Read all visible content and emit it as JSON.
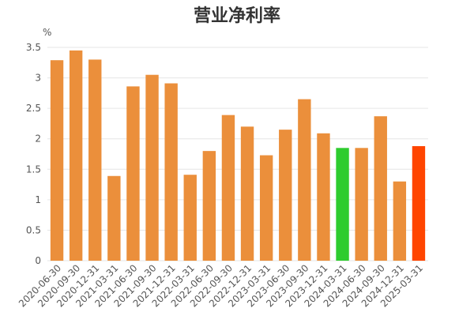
{
  "chart_data": {
    "type": "bar",
    "title": "营业净利率",
    "ylabel": "%",
    "xlabel": "",
    "ylim": [
      0,
      3.5
    ],
    "yticks": [
      "0",
      "0.5",
      "1",
      "1.5",
      "2",
      "2.5",
      "3",
      "3.5"
    ],
    "grid": true,
    "categories": [
      "2020-06-30",
      "2020-09-30",
      "2020-12-31",
      "2021-03-31",
      "2021-06-30",
      "2021-09-30",
      "2021-12-31",
      "2022-03-31",
      "2022-06-30",
      "2022-09-30",
      "2022-12-31",
      "2023-03-31",
      "2023-06-30",
      "2023-09-30",
      "2023-12-31",
      "2024-03-31",
      "2024-06-30",
      "2024-09-30",
      "2024-12-31",
      "2025-03-31"
    ],
    "values": [
      3.29,
      3.45,
      3.3,
      1.39,
      2.86,
      3.05,
      2.91,
      1.41,
      1.8,
      2.39,
      2.2,
      1.73,
      2.15,
      2.65,
      2.09,
      1.85,
      1.85,
      2.37,
      1.3,
      1.88
    ],
    "colors": {
      "default": "#eb8f3b",
      "highlight_green": "#2ecc2e",
      "highlight_red": "#ff4500"
    },
    "bar_color_keys": [
      "default",
      "default",
      "default",
      "default",
      "default",
      "default",
      "default",
      "default",
      "default",
      "default",
      "default",
      "default",
      "default",
      "default",
      "default",
      "highlight_green",
      "default",
      "default",
      "default",
      "highlight_red"
    ]
  }
}
